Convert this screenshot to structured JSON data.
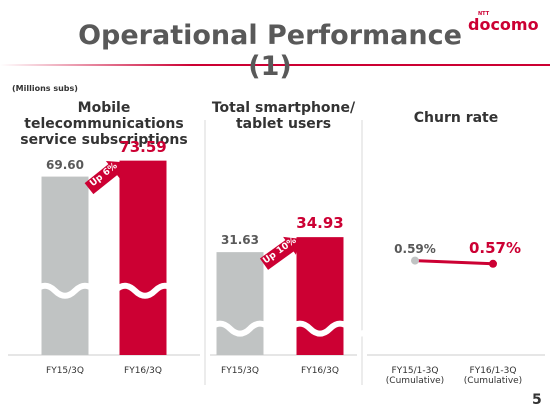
{
  "title": "Operational Performance (1)",
  "logo": "docomo",
  "logo_prefix": "NTT",
  "units": "(Millions subs)",
  "page_number": "5",
  "chart_data": [
    {
      "type": "bar",
      "title": "Mobile telecommunications\nservice subscriptions",
      "categories": [
        "FY15/3Q",
        "FY16/3Q"
      ],
      "values": [
        69.6,
        73.59
      ],
      "value_labels": [
        "69.60",
        "73.59"
      ],
      "colors": [
        "#c0c3c3",
        "#cc0033"
      ],
      "ylim": [
        25,
        75
      ],
      "axis_break": true,
      "annotation": "Up 6%"
    },
    {
      "type": "bar",
      "title": "Total smartphone/\ntablet users",
      "categories": [
        "FY15/3Q",
        "FY16/3Q"
      ],
      "values": [
        31.63,
        34.93
      ],
      "value_labels": [
        "31.63",
        "34.93"
      ],
      "colors": [
        "#c0c3c3",
        "#cc0033"
      ],
      "ylim": [
        9,
        53
      ],
      "axis_break": true,
      "annotation": "Up 10%"
    },
    {
      "type": "line",
      "title": "Churn rate",
      "categories": [
        "FY15/1-3Q\n(Cumulative)",
        "FY16/1-3Q\n(Cumulative)"
      ],
      "values": [
        0.59,
        0.57
      ],
      "value_labels": [
        "0.59%",
        "0.57%"
      ],
      "colors": [
        "#c0c3c3",
        "#cc0033"
      ],
      "ylim": [
        0,
        1.25
      ]
    }
  ]
}
